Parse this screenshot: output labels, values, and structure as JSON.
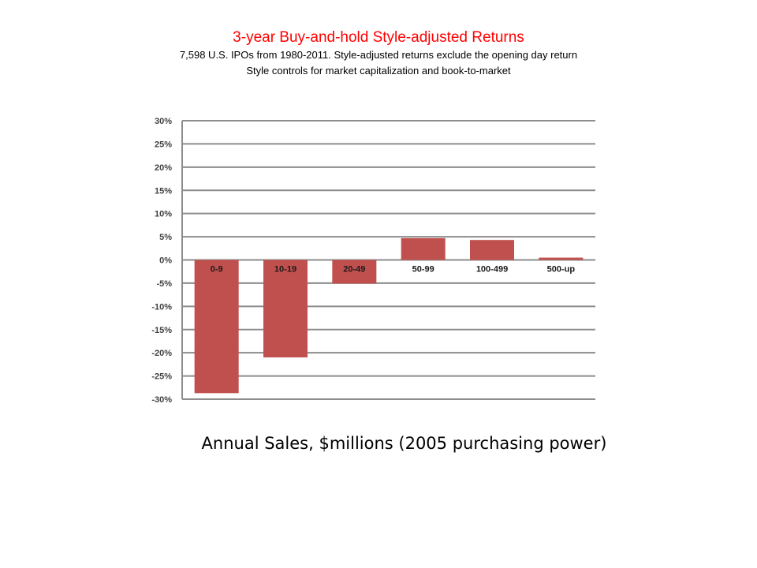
{
  "chart_data": {
    "type": "bar",
    "title": "3-year Buy-and-hold Style-adjusted Returns",
    "subtitle_lines": [
      "7,598 U.S. IPOs from 1980-2011.  Style-adjusted returns exclude the opening day return",
      "Style controls for market capitalization and book-to-market"
    ],
    "xlabel": "Annual Sales, $millions (2005 purchasing power)",
    "ylabel": "",
    "categories": [
      "0-9",
      "10-19",
      "20-49",
      "50-99",
      "100-499",
      "500-up"
    ],
    "values": [
      -28.7,
      -21.0,
      -5.1,
      4.7,
      4.3,
      0.5
    ],
    "ylim": [
      -30,
      30
    ],
    "yticks": [
      30,
      25,
      20,
      15,
      10,
      5,
      0,
      -5,
      -10,
      -15,
      -20,
      -25,
      -30
    ],
    "ytick_labels": [
      "30%",
      "25%",
      "20%",
      "15%",
      "10%",
      "5%",
      "0%",
      "-5%",
      "-10%",
      "-15%",
      "-20%",
      "-25%",
      "-30%"
    ],
    "grid": true,
    "bar_color": "#c0504d"
  }
}
